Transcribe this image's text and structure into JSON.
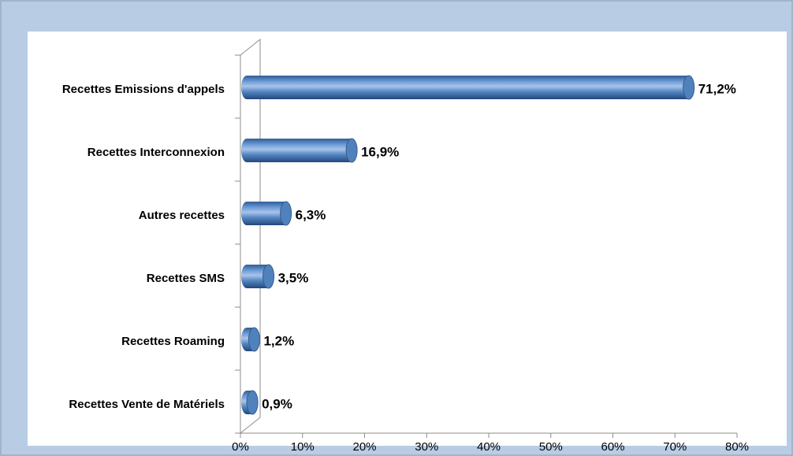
{
  "chart_data": {
    "type": "bar",
    "orientation": "horizontal",
    "categories": [
      "Recettes Emissions d'appels",
      "Recettes Interconnexion",
      "Autres recettes",
      "Recettes SMS",
      "Recettes Roaming",
      "Recettes Vente de Matériels"
    ],
    "values": [
      71.2,
      16.9,
      6.3,
      3.5,
      1.2,
      0.9
    ],
    "value_labels": [
      "71,2%",
      "16,9%",
      "6,3%",
      "3,5%",
      "1,2%",
      "0,9%"
    ],
    "color": "#4f81bd",
    "xlim": [
      0,
      80
    ],
    "xticks": [
      {
        "value": 0,
        "label": "0%"
      },
      {
        "value": 10,
        "label": "10%"
      },
      {
        "value": 20,
        "label": "20%"
      },
      {
        "value": 30,
        "label": "30%"
      },
      {
        "value": 40,
        "label": "40%"
      },
      {
        "value": 50,
        "label": "50%"
      },
      {
        "value": 60,
        "label": "60%"
      },
      {
        "value": 70,
        "label": "70%"
      },
      {
        "value": 80,
        "label": "80%"
      }
    ]
  }
}
